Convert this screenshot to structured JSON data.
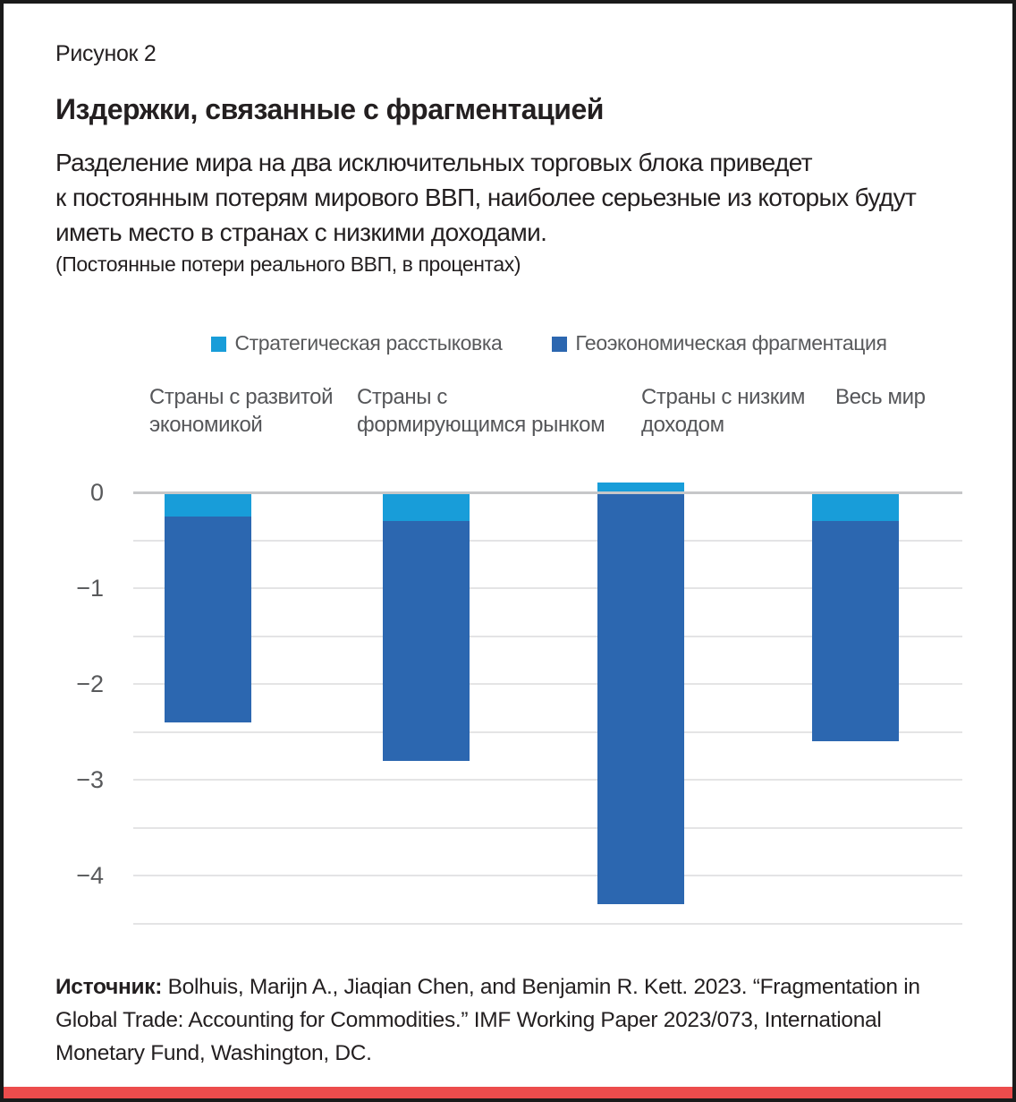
{
  "figure_label": "Рисунок 2",
  "title": "Издержки, связанные с фрагментацией",
  "subtitle_lines": [
    "Разделение мира на два исключительных торговых блока приведет",
    "к постоянным потерям мирового ВВП, наиболее серьезные из которых будут",
    "иметь место в странах с низкими доходами."
  ],
  "note": "(Постоянные потери реального ВВП, в процентах)",
  "source": {
    "label": "Источник:",
    "text": " Bolhuis, Marijn A., Jiaqian Chen, and Benjamin R. Kett. 2023. “Fragmentation in Global Trade: Accounting for Commodities.” IMF Working Paper 2023/073, International Monetary Fund, Washington, DC."
  },
  "colors": {
    "strategic_decoupling": "#189dd9",
    "geoeconomic_fragmentation": "#2c67b0",
    "accent_red": "#ec4c4c",
    "gridline": "#e4e4e5",
    "zero_line": "#c6c7c9",
    "text_dark": "#231f20",
    "text_gray": "#58595b"
  },
  "chart_data": {
    "type": "bar",
    "stacked": true,
    "title": "Издержки, связанные с фрагментацией",
    "ylabel": "Постоянные потери реального ВВП, в процентах",
    "categories": [
      "Страны с развитой экономикой",
      "Страны с формирующимся рынком",
      "Страны с низким доходом",
      "Весь мир"
    ],
    "series": [
      {
        "name": "Стратегическая расстыковка",
        "color": "#189dd9",
        "values": [
          -0.25,
          -0.3,
          0.1,
          -0.3
        ]
      },
      {
        "name": "Геоэкономическая фрагментация",
        "color": "#2c67b0",
        "values": [
          -2.15,
          -2.5,
          -4.3,
          -2.3
        ]
      }
    ],
    "bar_bottoms": [
      -2.4,
      -2.8,
      -4.3,
      -2.6
    ],
    "y_ticks": [
      0,
      -1,
      -2,
      -3,
      -4
    ],
    "y_tick_labels": [
      "0",
      "−1",
      "−2",
      "−3",
      "−4"
    ],
    "ylim": [
      -4.7,
      0.55
    ],
    "gridline_step": 0.5,
    "grid": true,
    "legend_position": "top"
  }
}
